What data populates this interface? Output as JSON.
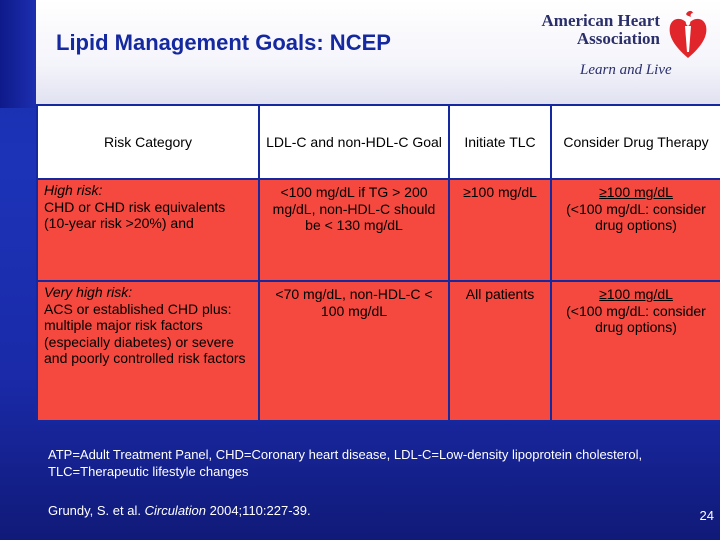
{
  "slide": {
    "title": "Lipid Management Goals: NCEP",
    "page_number": "24"
  },
  "logo": {
    "line1": "American Heart",
    "line2": "Association",
    "tagline": "Learn and Live"
  },
  "table": {
    "headers": [
      "Risk Category",
      "LDL-C and non-HDL-C Goal",
      "Initiate TLC",
      "Consider Drug Therapy"
    ],
    "rows": [
      {
        "category_title": "High risk:",
        "category_detail": "CHD or CHD risk equivalents (10-year risk >20%) and",
        "goal": "<100 mg/dL if TG > 200 mg/dL, non-HDL-C should be < 130 mg/dL",
        "tlc": "≥100 mg/dL",
        "drug_value": "≥100 mg/dL",
        "drug_note": "(<100 mg/dL: consider drug options)"
      },
      {
        "category_title": "Very high risk:",
        "category_detail": "ACS or established CHD plus: multiple major risk factors (especially diabetes) or severe and poorly controlled risk factors",
        "goal": "<70 mg/dL, non-HDL-C < 100 mg/dL",
        "tlc": "All patients",
        "drug_value": "≥100 mg/dL",
        "drug_note": "(<100 mg/dL: consider drug options)"
      }
    ]
  },
  "footnote": "ATP=Adult Treatment Panel, CHD=Coronary heart disease, LDL-C=Low-density lipoprotein cholesterol, TLC=Therapeutic lifestyle changes",
  "citation": {
    "authors": "Grundy, S. et al.",
    "journal": "Circulation",
    "details": "2004;110:227-39."
  },
  "colors": {
    "background": "#1c33b8",
    "title": "#1428a0",
    "row_fill": "#f5483e",
    "header_fill": "#ffffff",
    "logo_heart": "#e0262b"
  },
  "icons": [
    "heart-torch-icon"
  ]
}
